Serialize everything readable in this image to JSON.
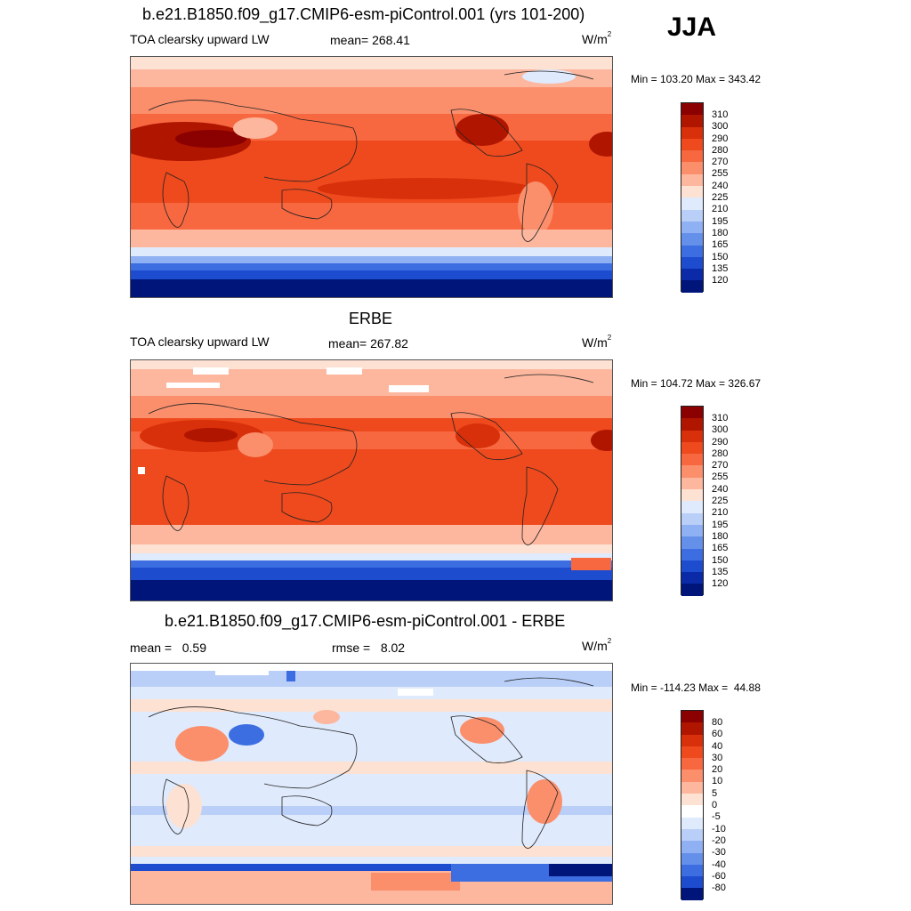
{
  "season": "JJA",
  "units": "W/m",
  "units_sup": "2",
  "panels": [
    {
      "title": "b.e21.B1850.f09_g17.CMIP6-esm-piControl.001 (yrs 101-200)",
      "left_label": "TOA clearsky upward LW",
      "center_label": "mean= 268.41",
      "minmax": "Min = 103.20 Max = 343.42",
      "colorbar_labels": [
        "310",
        "300",
        "290",
        "280",
        "270",
        "255",
        "240",
        "225",
        "210",
        "195",
        "180",
        "165",
        "150",
        "135",
        "120"
      ]
    },
    {
      "title": "ERBE",
      "left_label": "TOA clearsky upward LW",
      "center_label": "mean= 267.82",
      "minmax": "Min = 104.72 Max = 326.67",
      "colorbar_labels": [
        "310",
        "300",
        "290",
        "280",
        "270",
        "255",
        "240",
        "225",
        "210",
        "195",
        "180",
        "165",
        "150",
        "135",
        "120"
      ]
    },
    {
      "title": "b.e21.B1850.f09_g17.CMIP6-esm-piControl.001 - ERBE",
      "left_label": "mean =   0.59",
      "center_label": "rmse =   8.02",
      "minmax": "Min = -114.23 Max =  44.88",
      "colorbar_labels": [
        "80",
        "60",
        "40",
        "30",
        "20",
        "10",
        "5",
        "0",
        "-5",
        "-10",
        "-20",
        "-30",
        "-40",
        "-60",
        "-80"
      ]
    }
  ],
  "colors": {
    "abs_scale": [
      "#8b0000",
      "#b01500",
      "#d8300a",
      "#ee4a1d",
      "#f76840",
      "#fb8f6c",
      "#fcb79e",
      "#fde1d2",
      "#dfeafc",
      "#b9cff8",
      "#8fb0f2",
      "#6590ea",
      "#3c6ee2",
      "#1d4ccf",
      "#0a2aa8",
      "#00157a"
    ],
    "diff_scale": [
      "#8b0000",
      "#b01500",
      "#d8300a",
      "#ee4a1d",
      "#f76840",
      "#fb8f6c",
      "#fcb79e",
      "#fde1d2",
      "#ffffff",
      "#dfeafc",
      "#b9cff8",
      "#8fb0f2",
      "#6590ea",
      "#3c6ee2",
      "#1d4ccf",
      "#00157a"
    ]
  }
}
